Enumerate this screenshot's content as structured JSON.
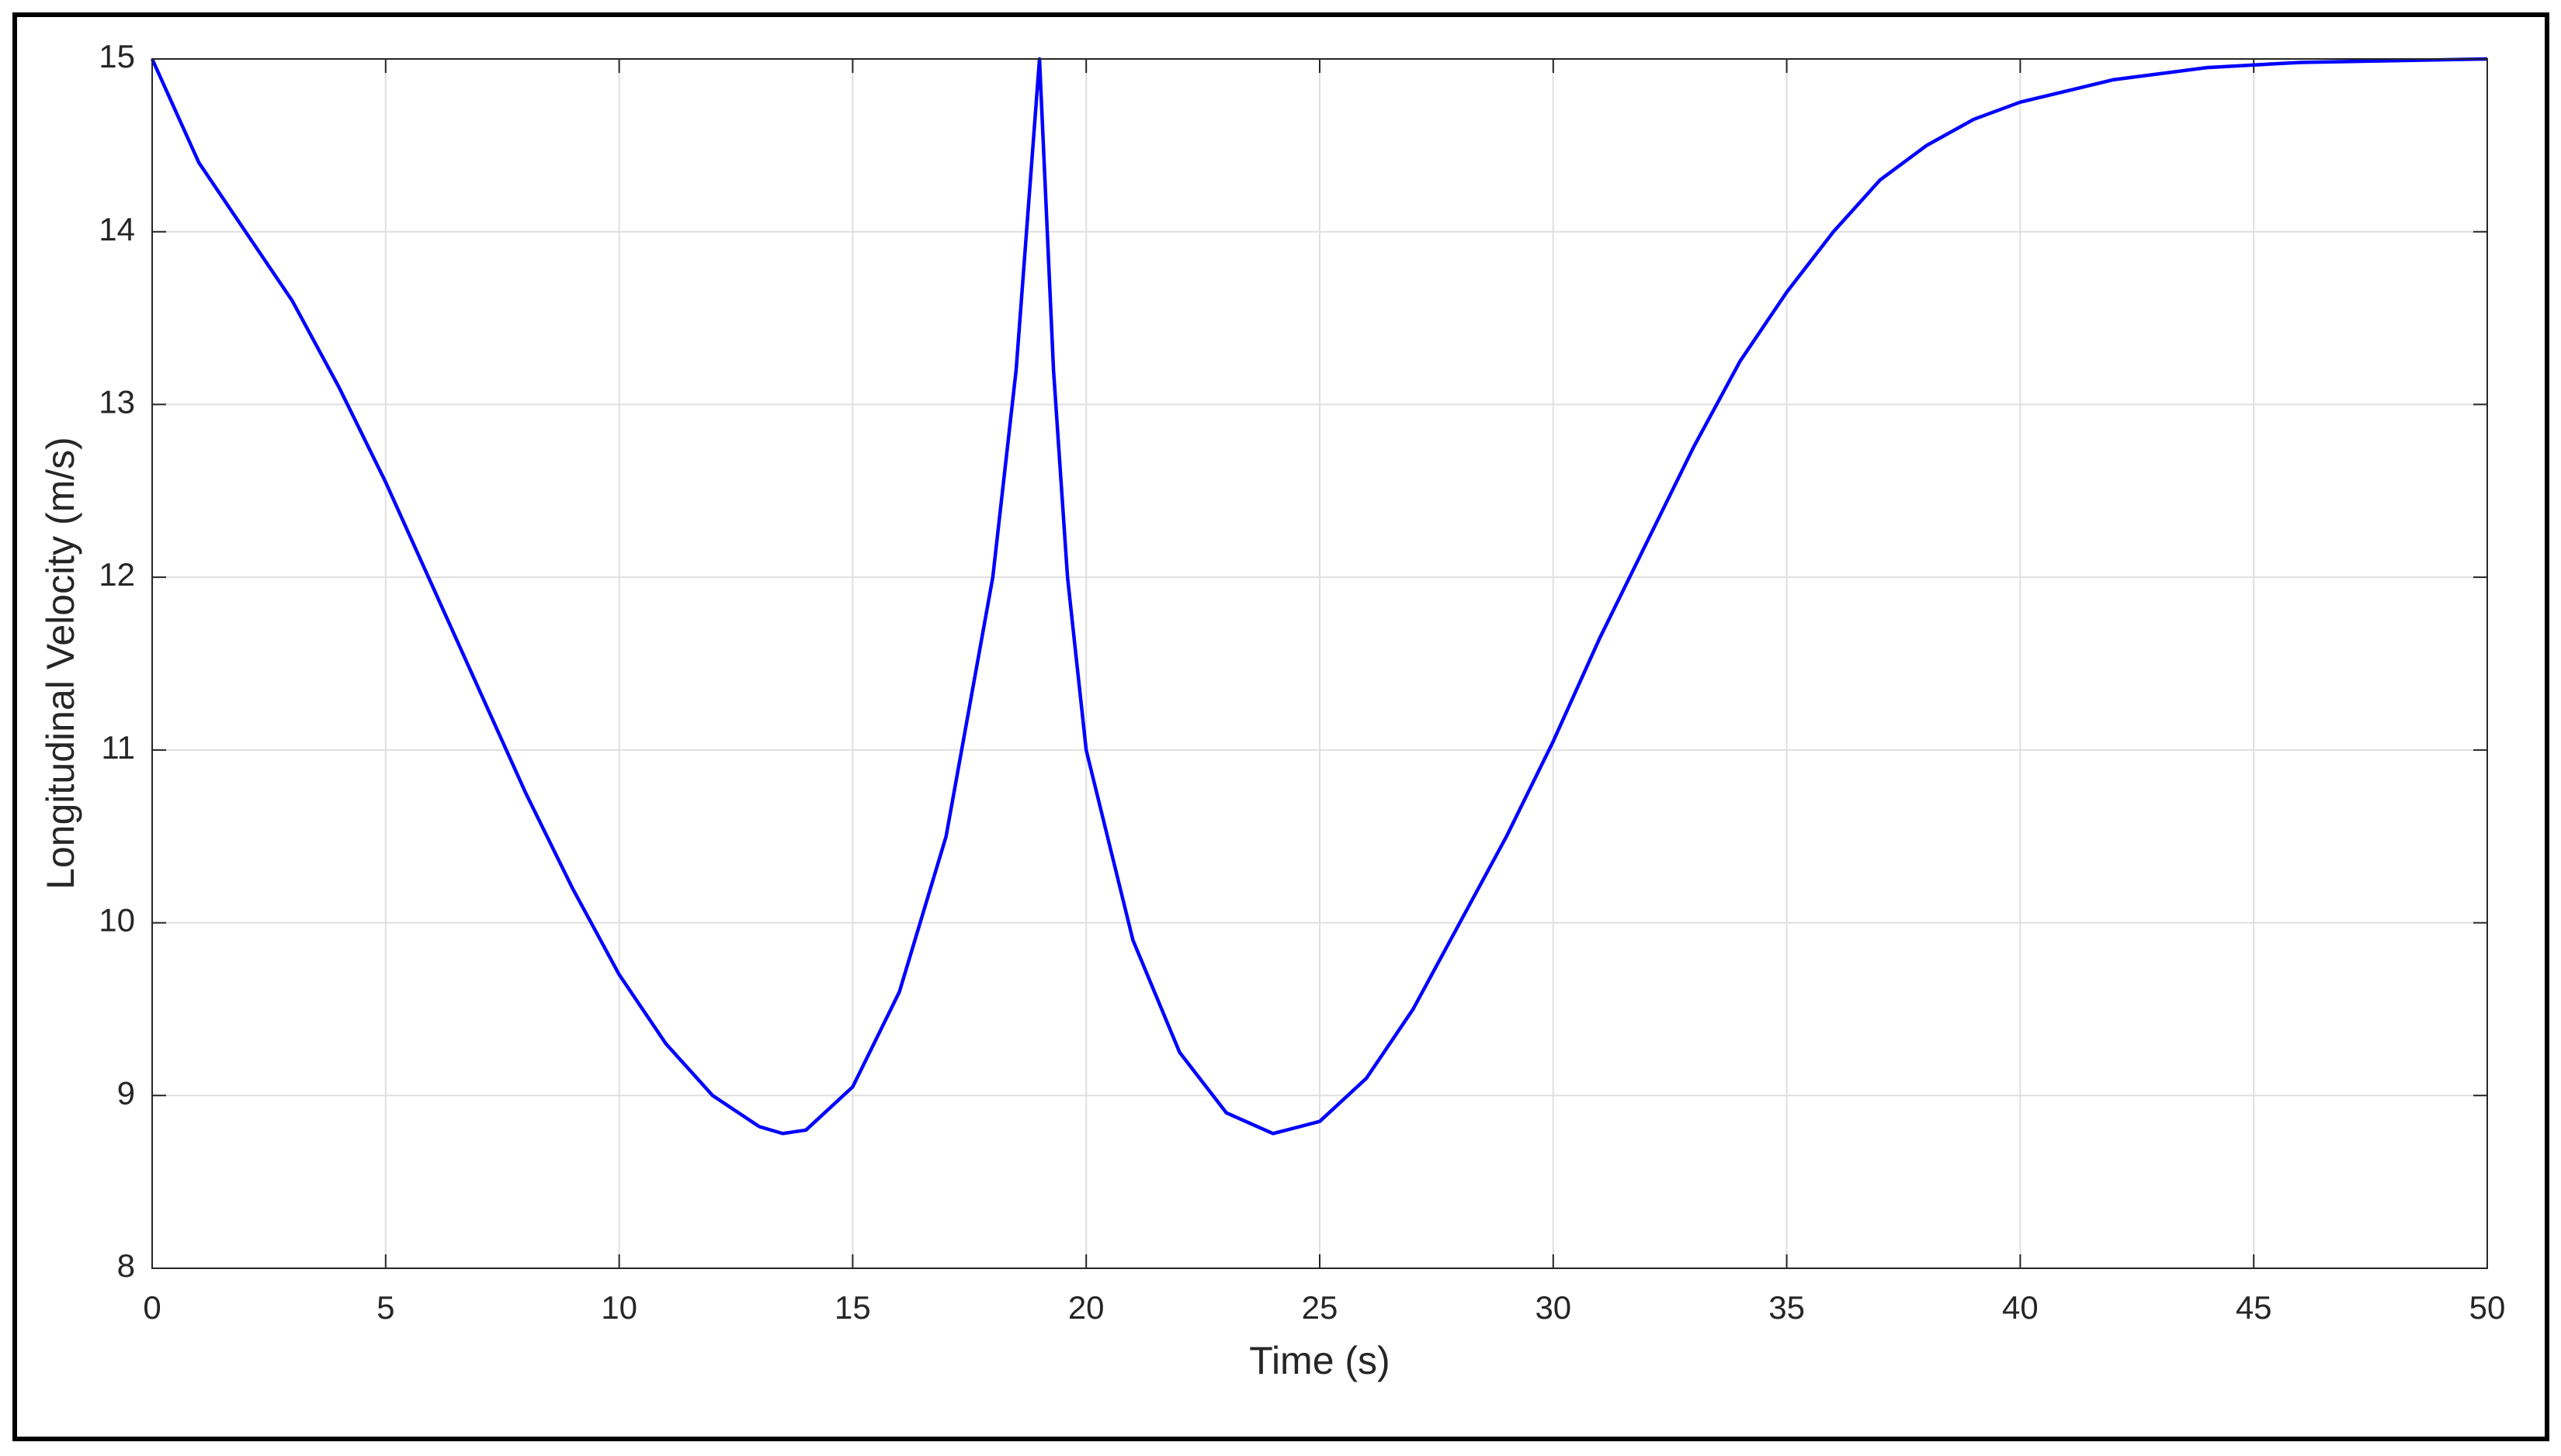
{
  "chart_data": {
    "type": "line",
    "xlabel": "Time (s)",
    "ylabel": "Longitudinal Velocity (m/s)",
    "x": [
      0,
      1,
      2,
      3,
      4,
      5,
      6,
      7,
      8,
      9,
      10,
      11,
      12,
      13,
      13.5,
      14,
      15,
      16,
      17,
      18,
      18.5,
      19,
      19.3,
      19.6,
      20,
      21,
      22,
      23,
      24,
      25,
      26,
      27,
      28,
      29,
      30,
      31,
      32,
      33,
      34,
      35,
      36,
      37,
      38,
      39,
      40,
      42,
      44,
      46,
      48,
      50
    ],
    "series": [
      {
        "color": "#0000ff",
        "values": [
          15,
          14.4,
          14.0,
          13.6,
          13.1,
          12.55,
          11.95,
          11.35,
          10.75,
          10.2,
          9.7,
          9.3,
          9.0,
          8.82,
          8.78,
          8.8,
          9.05,
          9.6,
          10.5,
          12.0,
          13.2,
          15,
          13.2,
          12.0,
          11.0,
          9.9,
          9.25,
          8.9,
          8.78,
          8.85,
          9.1,
          9.5,
          10.0,
          10.5,
          11.05,
          11.65,
          12.2,
          12.75,
          13.25,
          13.65,
          14.0,
          14.3,
          14.5,
          14.65,
          14.75,
          14.88,
          14.95,
          14.98,
          14.99,
          15
        ]
      }
    ],
    "xlim": [
      0,
      50
    ],
    "xticks": [
      0,
      5,
      10,
      15,
      20,
      25,
      30,
      35,
      40,
      45,
      50
    ],
    "ylim": [
      8,
      15
    ],
    "yticks": [
      8,
      9,
      10,
      11,
      12,
      13,
      14,
      15
    ],
    "grid": true
  }
}
